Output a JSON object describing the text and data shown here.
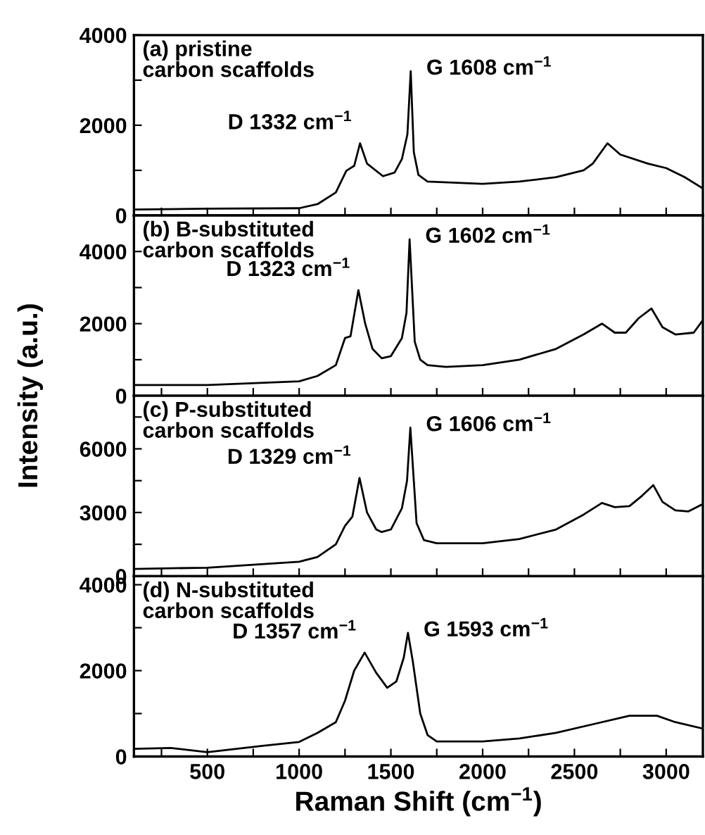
{
  "chart_data": [
    {
      "type": "line",
      "xlim": [
        100,
        3200
      ],
      "ylim": [
        0,
        4000
      ],
      "tick_labels": "y",
      "marker": "none",
      "line_style": "solid",
      "grid": false,
      "legend": false,
      "xticks": [
        {
          "value": 250,
          "label": null
        },
        {
          "value": 500,
          "label": null
        },
        {
          "value": 750,
          "label": null
        },
        {
          "value": 1000,
          "label": null
        },
        {
          "value": 1250,
          "label": null
        },
        {
          "value": 1500,
          "label": null
        },
        {
          "value": 1750,
          "label": null
        },
        {
          "value": 2000,
          "label": null
        },
        {
          "value": 2250,
          "label": null
        },
        {
          "value": 2500,
          "label": null
        },
        {
          "value": 2750,
          "label": null
        },
        {
          "value": 3000,
          "label": null
        }
      ],
      "yticks": [
        0,
        {
          "value": 1000,
          "label": null
        },
        2000,
        {
          "value": 3000,
          "label": null
        },
        4000
      ],
      "annotations": [
        "(a) pristine\ncarbon scaffolds",
        {
          "text": "D 1332 cm$^{−1}$",
          "x": 1332,
          "y": 1600
        },
        {
          "text": "G 1608 cm$^{−1}$",
          "x": 1608,
          "y": 3200
        }
      ],
      "series": [
        {
          "color": "#000000",
          "x": [
            100,
            500,
            1000,
            1100,
            1200,
            1257,
            1300,
            1332,
            1370,
            1457,
            1520,
            1560,
            1590,
            1608,
            1625,
            1650,
            1700,
            2000,
            2200,
            2400,
            2550,
            2600,
            2680,
            2750,
            2900,
            3000,
            3100,
            3200
          ],
          "values": [
            130,
            150,
            160,
            250,
            510,
            990,
            1100,
            1600,
            1150,
            870,
            950,
            1250,
            1800,
            3200,
            1400,
            900,
            750,
            700,
            750,
            850,
            1000,
            1150,
            1600,
            1350,
            1150,
            1050,
            850,
            600
          ]
        }
      ]
    },
    {
      "type": "line",
      "xlim": [
        100,
        3200
      ],
      "ylim": [
        0,
        5000
      ],
      "tick_labels": "y",
      "marker": "none",
      "line_style": "solid",
      "grid": false,
      "legend": false,
      "ylabel": "Intensity (a.u.)",
      "xticks": [
        {
          "value": 250,
          "label": null
        },
        {
          "value": 500,
          "label": null
        },
        {
          "value": 750,
          "label": null
        },
        {
          "value": 1000,
          "label": null
        },
        {
          "value": 1250,
          "label": null
        },
        {
          "value": 1500,
          "label": null
        },
        {
          "value": 1750,
          "label": null
        },
        {
          "value": 2000,
          "label": null
        },
        {
          "value": 2250,
          "label": null
        },
        {
          "value": 2500,
          "label": null
        },
        {
          "value": 2750,
          "label": null
        },
        {
          "value": 3000,
          "label": null
        }
      ],
      "yticks": [
        0,
        {
          "value": 1000,
          "label": null
        },
        2000,
        {
          "value": 3000,
          "label": null
        },
        4000
      ],
      "annotations": [
        "(b) B-substituted\ncarbon scaffolds",
        {
          "text": "D 1323 cm$^{−1}$",
          "x": 1323,
          "y": 2930
        },
        {
          "text": "G 1602 cm$^{−1}$",
          "x": 1602,
          "y": 4340
        }
      ],
      "series": [
        {
          "color": "#000000",
          "x": [
            100,
            500,
            1000,
            1100,
            1200,
            1250,
            1280,
            1323,
            1360,
            1400,
            1450,
            1500,
            1560,
            1585,
            1602,
            1630,
            1660,
            1700,
            1800,
            2000,
            2200,
            2400,
            2550,
            2650,
            2720,
            2780,
            2850,
            2920,
            2980,
            3050,
            3150,
            3200
          ],
          "values": [
            300,
            300,
            400,
            550,
            850,
            1600,
            1650,
            2930,
            2000,
            1300,
            1040,
            1100,
            1600,
            2300,
            4340,
            1500,
            1000,
            850,
            800,
            850,
            1000,
            1300,
            1700,
            2000,
            1750,
            1750,
            2150,
            2420,
            1900,
            1700,
            1750,
            2100
          ]
        }
      ]
    },
    {
      "type": "line",
      "xlim": [
        100,
        3200
      ],
      "ylim": [
        0,
        8500
      ],
      "tick_labels": "y",
      "marker": "none",
      "line_style": "solid",
      "grid": false,
      "legend": false,
      "xticks": [
        {
          "value": 250,
          "label": null
        },
        {
          "value": 500,
          "label": null
        },
        {
          "value": 750,
          "label": null
        },
        {
          "value": 1000,
          "label": null
        },
        {
          "value": 1250,
          "label": null
        },
        {
          "value": 1500,
          "label": null
        },
        {
          "value": 1750,
          "label": null
        },
        {
          "value": 2000,
          "label": null
        },
        {
          "value": 2250,
          "label": null
        },
        {
          "value": 2500,
          "label": null
        },
        {
          "value": 2750,
          "label": null
        },
        {
          "value": 3000,
          "label": null
        }
      ],
      "yticks": [
        0,
        {
          "value": 1500,
          "label": null
        },
        3000,
        {
          "value": 4500,
          "label": null
        },
        6000,
        {
          "value": 7500,
          "label": null
        }
      ],
      "annotations": [
        "(c) P-substituted\ncarbon scaffolds",
        {
          "text": "D 1329 cm$^{−1}$",
          "x": 1329,
          "y": 4630
        },
        {
          "text": "G 1606 cm$^{−1}$",
          "x": 1606,
          "y": 7000
        }
      ],
      "series": [
        {
          "color": "#000000",
          "x": [
            100,
            500,
            1000,
            1100,
            1200,
            1250,
            1290,
            1329,
            1370,
            1420,
            1450,
            1500,
            1560,
            1588,
            1606,
            1640,
            1680,
            1750,
            2000,
            2200,
            2400,
            2550,
            2650,
            2720,
            2800,
            2870,
            2930,
            2980,
            3050,
            3120,
            3200
          ],
          "values": [
            340,
            400,
            680,
            900,
            1500,
            2370,
            2800,
            4630,
            3000,
            2200,
            2080,
            2200,
            3200,
            4500,
            7000,
            2500,
            1700,
            1550,
            1550,
            1750,
            2200,
            2900,
            3450,
            3250,
            3300,
            3800,
            4290,
            3500,
            3100,
            3050,
            3400
          ]
        }
      ]
    },
    {
      "type": "line",
      "xlim": [
        100,
        3200
      ],
      "ylim": [
        0,
        4200
      ],
      "marker": "none",
      "line_style": "solid",
      "grid": false,
      "legend": false,
      "xlabel": "Raman Shift (cm$^{−1}$)",
      "xticks": [
        {
          "value": 250,
          "label": null
        },
        500,
        {
          "value": 750,
          "label": null
        },
        1000,
        {
          "value": 1250,
          "label": null
        },
        1500,
        {
          "value": 1750,
          "label": null
        },
        2000,
        {
          "value": 2250,
          "label": null
        },
        2500,
        {
          "value": 2750,
          "label": null
        },
        3000
      ],
      "yticks": [
        0,
        {
          "value": 1000,
          "label": null
        },
        2000,
        {
          "value": 3000,
          "label": null
        },
        4000
      ],
      "annotations": [
        "(d) N-substituted\ncarbon scaffolds",
        {
          "text": "D 1357 cm$^{−1}$",
          "x": 1357,
          "y": 2420
        },
        {
          "text": "G 1593 cm$^{−1}$",
          "x": 1593,
          "y": 2880
        }
      ],
      "series": [
        {
          "color": "#000000",
          "x": [
            100,
            300,
            500,
            800,
            1000,
            1100,
            1200,
            1250,
            1300,
            1357,
            1420,
            1480,
            1530,
            1570,
            1593,
            1620,
            1660,
            1700,
            1750,
            2000,
            2200,
            2400,
            2600,
            2800,
            2950,
            3050,
            3200
          ],
          "values": [
            180,
            200,
            100,
            250,
            340,
            550,
            800,
            1300,
            2000,
            2420,
            1950,
            1600,
            1750,
            2300,
            2880,
            2200,
            1000,
            500,
            350,
            350,
            420,
            550,
            750,
            950,
            950,
            800,
            650
          ]
        }
      ]
    }
  ]
}
